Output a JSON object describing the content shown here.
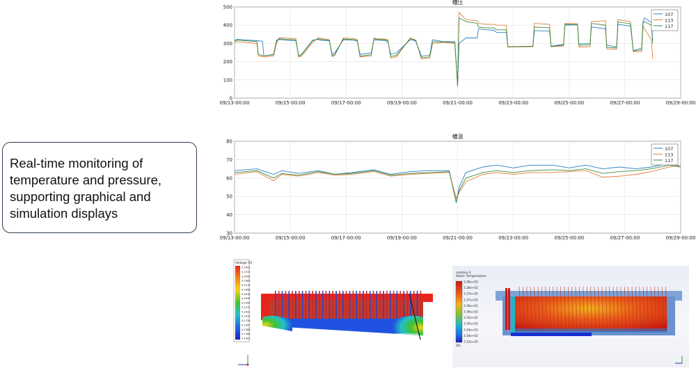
{
  "callout": {
    "lines": [
      "Real-time monitoring of",
      "temperature and pressure,",
      "supporting graphical and",
      "simulation displays"
    ]
  },
  "colors": {
    "series_107": "#2e7fc0",
    "series_113": "#e57e3a",
    "series_117": "#3c8a3c",
    "callout_border": "#2f3e55"
  },
  "chart_data": [
    {
      "type": "line",
      "title": "槽压",
      "xlabel": "",
      "ylabel": "",
      "x_ticks": [
        "09/13-00:00",
        "09/15-00:00",
        "09/17-00:00",
        "09/19-00:00",
        "09/21-00:00",
        "09/23-00:00",
        "09/25-00:00",
        "09/27-00:00",
        "09/29-00:00"
      ],
      "xlim": [
        0,
        16
      ],
      "ylim": [
        0,
        500
      ],
      "y_ticks": [
        0,
        100,
        200,
        300,
        400,
        500
      ],
      "grid": true,
      "legend_position": "top-right",
      "series": [
        {
          "name": "107",
          "x": [
            0,
            0.1,
            0.8,
            1.0,
            1.05,
            1.4,
            1.5,
            1.6,
            1.8,
            2.2,
            2.3,
            2.4,
            2.8,
            3.0,
            3.05,
            3.4,
            3.5,
            3.6,
            3.9,
            4.3,
            4.4,
            4.5,
            4.9,
            5.0,
            5.1,
            5.4,
            5.5,
            5.6,
            5.8,
            6.3,
            6.4,
            6.5,
            6.7,
            7.0,
            7.1,
            7.5,
            7.9,
            8.0,
            8.05,
            8.3,
            8.7,
            8.75,
            9.0,
            9.3,
            9.4,
            9.75,
            9.8,
            10.7,
            10.75,
            11.3,
            11.35,
            11.8,
            11.85,
            12.3,
            12.35,
            12.75,
            12.8,
            13.3,
            13.35,
            13.7,
            13.75,
            14.2,
            14.3,
            14.6,
            14.65,
            14.7,
            14.95,
            15.0
          ],
          "y": [
            318,
            322,
            315,
            312,
            232,
            240,
            310,
            322,
            318,
            315,
            232,
            240,
            318,
            322,
            318,
            315,
            240,
            250,
            320,
            318,
            312,
            240,
            248,
            320,
            318,
            316,
            308,
            240,
            248,
            320,
            318,
            312,
            230,
            235,
            320,
            310,
            310,
            65,
            300,
            330,
            330,
            380,
            375,
            372,
            360,
            360,
            280,
            285,
            370,
            368,
            285,
            295,
            400,
            402,
            298,
            300,
            390,
            380,
            290,
            280,
            405,
            395,
            260,
            275,
            420,
            440,
            415,
            318
          ]
        },
        {
          "name": "113",
          "x": [
            0,
            0.1,
            0.8,
            0.85,
            1.05,
            1.4,
            1.5,
            1.6,
            1.8,
            2.2,
            2.3,
            2.4,
            2.8,
            3.0,
            3.05,
            3.4,
            3.5,
            3.6,
            3.9,
            4.3,
            4.4,
            4.5,
            4.9,
            5.0,
            5.1,
            5.4,
            5.5,
            5.6,
            5.8,
            6.3,
            6.4,
            6.5,
            6.7,
            7.0,
            7.1,
            7.5,
            7.9,
            8.0,
            8.05,
            8.3,
            8.7,
            8.75,
            9.0,
            9.3,
            9.4,
            9.75,
            9.8,
            10.7,
            10.75,
            11.3,
            11.35,
            11.8,
            11.85,
            12.3,
            12.35,
            12.75,
            12.8,
            13.3,
            13.35,
            13.7,
            13.75,
            14.2,
            14.3,
            14.6,
            14.65,
            14.7,
            14.95,
            15.0
          ],
          "y": [
            305,
            310,
            300,
            232,
            225,
            232,
            300,
            330,
            330,
            325,
            225,
            230,
            305,
            330,
            330,
            320,
            228,
            235,
            330,
            326,
            320,
            225,
            232,
            330,
            326,
            324,
            320,
            220,
            226,
            330,
            324,
            318,
            215,
            220,
            300,
            305,
            300,
            70,
            470,
            430,
            425,
            410,
            405,
            405,
            400,
            400,
            280,
            282,
            410,
            405,
            282,
            286,
            410,
            408,
            280,
            282,
            420,
            425,
            270,
            268,
            430,
            420,
            255,
            255,
            395,
            380,
            320,
            215
          ]
        },
        {
          "name": "117",
          "x": [
            0,
            0.1,
            0.8,
            0.85,
            1.05,
            1.4,
            1.5,
            1.6,
            1.8,
            2.2,
            2.3,
            2.4,
            2.8,
            3.0,
            3.05,
            3.4,
            3.5,
            3.6,
            3.9,
            4.3,
            4.4,
            4.5,
            4.9,
            5.0,
            5.1,
            5.4,
            5.5,
            5.6,
            5.8,
            6.3,
            6.4,
            6.5,
            6.7,
            7.0,
            7.1,
            7.5,
            7.9,
            8.0,
            8.05,
            8.3,
            8.7,
            8.75,
            9.0,
            9.3,
            9.4,
            9.75,
            9.8,
            10.7,
            10.75,
            11.3,
            11.35,
            11.8,
            11.85,
            12.3,
            12.35,
            12.75,
            12.8,
            13.3,
            13.35,
            13.7,
            13.75,
            14.2,
            14.3,
            14.6,
            14.65,
            14.7,
            14.95,
            15.0
          ],
          "y": [
            312,
            318,
            310,
            240,
            232,
            238,
            316,
            326,
            322,
            320,
            230,
            238,
            315,
            326,
            322,
            318,
            232,
            240,
            324,
            320,
            316,
            230,
            238,
            326,
            322,
            320,
            315,
            228,
            234,
            326,
            322,
            316,
            222,
            226,
            310,
            308,
            305,
            68,
            440,
            420,
            410,
            390,
            385,
            385,
            375,
            375,
            282,
            284,
            390,
            386,
            283,
            290,
            405,
            404,
            290,
            292,
            410,
            400,
            278,
            275,
            418,
            408,
            258,
            265,
            410,
            420,
            400,
            300
          ]
        }
      ]
    },
    {
      "type": "line",
      "title": "槽温",
      "xlabel": "",
      "ylabel": "",
      "x_ticks": [
        "09/13-00:00",
        "09/15-00:00",
        "09/17-00:00",
        "09/19-00:00",
        "09/21-00:00",
        "09/23-00:00",
        "09/25-00:00",
        "09/27-00:00",
        "09/29-00:00"
      ],
      "xlim": [
        0,
        16
      ],
      "ylim": [
        30,
        80
      ],
      "y_ticks": [
        30,
        40,
        50,
        60,
        70,
        80
      ],
      "grid": true,
      "legend_position": "top-right",
      "series": [
        {
          "name": "107",
          "x": [
            0,
            0.8,
            1.4,
            1.7,
            2.3,
            3.0,
            3.6,
            4.2,
            5.0,
            5.6,
            6.3,
            7.0,
            7.7,
            7.95,
            8.05,
            8.3,
            8.9,
            9.4,
            10.0,
            10.6,
            11.4,
            12.0,
            12.6,
            13.2,
            13.8,
            14.4,
            14.95,
            15.6,
            16.0
          ],
          "y": [
            64,
            65,
            62,
            64,
            62.5,
            64,
            62,
            63,
            64.5,
            62,
            63.5,
            64,
            64,
            46.5,
            55,
            63,
            66,
            67,
            65.5,
            67,
            67,
            65.5,
            67,
            65,
            66,
            65,
            66,
            68,
            66
          ]
        },
        {
          "name": "113",
          "x": [
            0,
            0.8,
            1.4,
            1.7,
            2.3,
            3.0,
            3.6,
            4.2,
            5.0,
            5.6,
            6.3,
            7.0,
            7.7,
            7.95,
            8.05,
            8.3,
            8.9,
            9.4,
            10.0,
            10.6,
            11.4,
            12.0,
            12.6,
            13.2,
            13.8,
            14.4,
            14.95,
            15.6,
            16.0
          ],
          "y": [
            62,
            63.5,
            58.5,
            62,
            61,
            63,
            61.5,
            62,
            63.5,
            61,
            62,
            62.5,
            63,
            49,
            52,
            58,
            62,
            63,
            62,
            63,
            63,
            63.5,
            64,
            60.5,
            61,
            62,
            63.5,
            66,
            67
          ]
        },
        {
          "name": "117",
          "x": [
            0,
            0.8,
            1.4,
            1.7,
            2.3,
            3.0,
            3.6,
            4.2,
            5.0,
            5.6,
            6.3,
            7.0,
            7.7,
            7.95,
            8.05,
            8.3,
            8.9,
            9.4,
            10.0,
            10.6,
            11.4,
            12.0,
            12.6,
            13.2,
            13.8,
            14.4,
            14.95,
            15.6,
            16.0
          ],
          "y": [
            63,
            64,
            60,
            62.5,
            61.5,
            63.5,
            62,
            62.5,
            64,
            61.5,
            62.5,
            63,
            63.5,
            47,
            53,
            60,
            63,
            64,
            63,
            64,
            64.5,
            64,
            65,
            62.5,
            63.5,
            64,
            65,
            67,
            66
          ]
        }
      ]
    }
  ],
  "sim_voltage": {
    "legend_title": "Voltage [V]",
    "legend_values": [
      "0.3905",
      "0.3723",
      "0.3542",
      "0.3360",
      "0.3179",
      "0.2998",
      "0.2816",
      "0.2635",
      "0.2454",
      "0.2272",
      "0.2091",
      "0.1910",
      "0.1728",
      "0.1547",
      "0.1366",
      "0.1184",
      "0.1003"
    ]
  },
  "sim_thermal": {
    "legend_title_1": "contour-1",
    "legend_title_2": "Static Temperature",
    "legend_values": [
      "3.38e+02",
      "3.38e+02",
      "3.37e+02",
      "3.37e+02",
      "3.36e+02",
      "3.36e+02",
      "3.35e+02",
      "3.35e+02",
      "3.34e+02",
      "3.34e+02",
      "3.33e+02"
    ],
    "legend_unit": "[K]"
  }
}
